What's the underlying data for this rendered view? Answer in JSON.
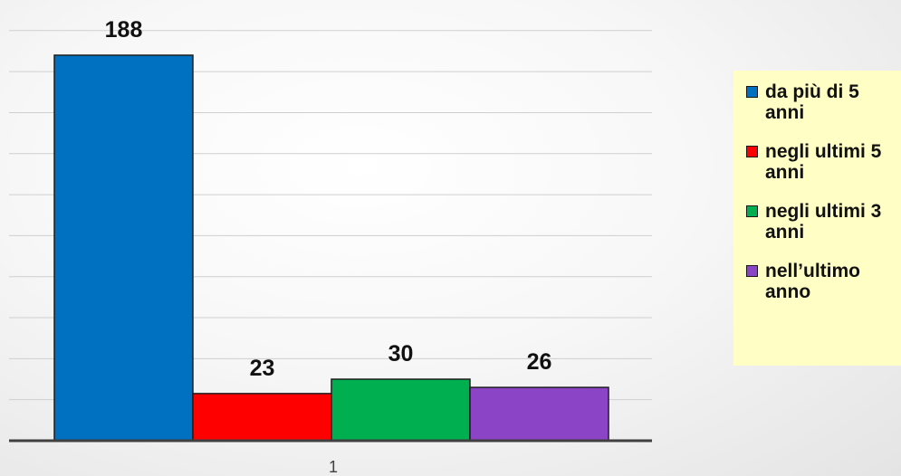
{
  "chart_data": {
    "type": "bar",
    "categories": [
      "1"
    ],
    "series": [
      {
        "name": "da più di 5 anni",
        "values": [
          188
        ],
        "color": "#0070c0"
      },
      {
        "name": "negli ultimi 5 anni",
        "values": [
          23
        ],
        "color": "#ff0000"
      },
      {
        "name": "negli ultimi 3 anni",
        "values": [
          30
        ],
        "color": "#00b050"
      },
      {
        "name": "nell’ultimo anno",
        "values": [
          26
        ],
        "color": "#8b44c6"
      }
    ],
    "data_labels": [
      "188",
      "23",
      "30",
      "26"
    ],
    "title": "",
    "xlabel": "",
    "ylabel": "",
    "ylim": [
      0,
      200
    ],
    "grid": true,
    "legend_position": "right"
  }
}
